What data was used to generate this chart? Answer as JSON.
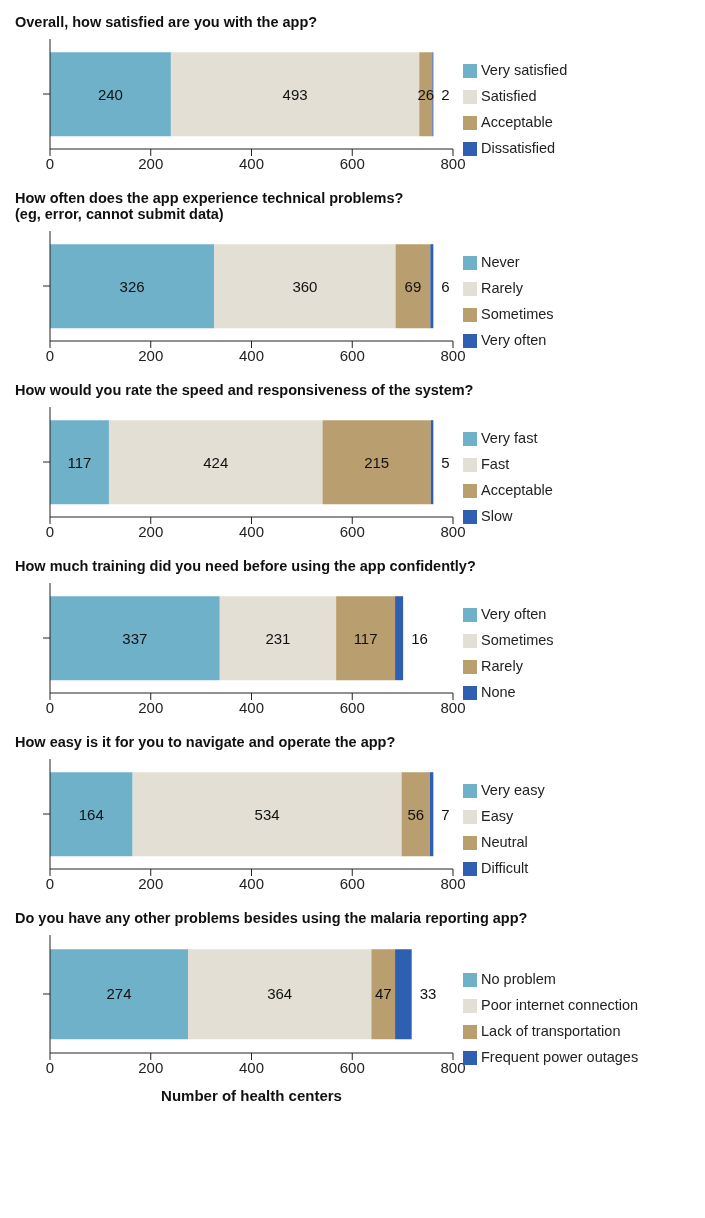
{
  "chart_data": [
    {
      "type": "bar",
      "orientation": "horizontal",
      "stacked": true,
      "title": "Overall, how satisfied are you with the app?",
      "categories": [
        null
      ],
      "series": [
        {
          "name": "Very satisfied",
          "color": "#6fb1c8",
          "values": [
            240
          ]
        },
        {
          "name": "Satisfied",
          "color": "#e3dfd4",
          "values": [
            493
          ]
        },
        {
          "name": "Acceptable",
          "color": "#b99e6f",
          "values": [
            26
          ]
        },
        {
          "name": "Dissatisfied",
          "color": "#2e5fb0",
          "values": [
            2
          ]
        }
      ],
      "xlim": [
        0,
        800
      ],
      "xticks": [
        0,
        200,
        400,
        600,
        800
      ],
      "data_labels": true,
      "legend": "right",
      "tick_labels": "x",
      "grid": false
    },
    {
      "type": "bar",
      "orientation": "horizontal",
      "stacked": true,
      "title": "How often does the app experience technical problems?\n(eg, error, cannot submit data)",
      "categories": [
        null
      ],
      "series": [
        {
          "name": "Never",
          "color": "#6fb1c8",
          "values": [
            326
          ]
        },
        {
          "name": "Rarely",
          "color": "#e3dfd4",
          "values": [
            360
          ]
        },
        {
          "name": "Sometimes",
          "color": "#b99e6f",
          "values": [
            69
          ]
        },
        {
          "name": "Very often",
          "color": "#2e5fb0",
          "values": [
            6
          ]
        }
      ],
      "xlim": [
        0,
        800
      ],
      "xticks": [
        0,
        200,
        400,
        600,
        800
      ],
      "data_labels": true,
      "legend": "right",
      "tick_labels": "x",
      "grid": false
    },
    {
      "type": "bar",
      "orientation": "horizontal",
      "stacked": true,
      "title": "How would you rate the speed and responsiveness of the system?",
      "categories": [
        null
      ],
      "series": [
        {
          "name": "Very fast",
          "color": "#6fb1c8",
          "values": [
            117
          ]
        },
        {
          "name": "Fast",
          "color": "#e3dfd4",
          "values": [
            424
          ]
        },
        {
          "name": "Acceptable",
          "color": "#b99e6f",
          "values": [
            215
          ]
        },
        {
          "name": "Slow",
          "color": "#2e5fb0",
          "values": [
            5
          ]
        }
      ],
      "xlim": [
        0,
        800
      ],
      "xticks": [
        0,
        200,
        400,
        600,
        800
      ],
      "data_labels": true,
      "legend": "right",
      "tick_labels": "x",
      "grid": false
    },
    {
      "type": "bar",
      "orientation": "horizontal",
      "stacked": true,
      "title": "How much training did you need before using the app confidently?",
      "categories": [
        null
      ],
      "series": [
        {
          "name": "Very often",
          "color": "#6fb1c8",
          "values": [
            337
          ]
        },
        {
          "name": "Sometimes",
          "color": "#e3dfd4",
          "values": [
            231
          ]
        },
        {
          "name": "Rarely",
          "color": "#b99e6f",
          "values": [
            117
          ]
        },
        {
          "name": "None",
          "color": "#2e5fb0",
          "values": [
            16
          ]
        }
      ],
      "xlim": [
        0,
        800
      ],
      "xticks": [
        0,
        200,
        400,
        600,
        800
      ],
      "data_labels": true,
      "legend": "right",
      "tick_labels": "x",
      "grid": false
    },
    {
      "type": "bar",
      "orientation": "horizontal",
      "stacked": true,
      "title": "How easy is it for you to navigate and operate the app?",
      "categories": [
        null
      ],
      "series": [
        {
          "name": "Very easy",
          "color": "#6fb1c8",
          "values": [
            164
          ]
        },
        {
          "name": "Easy",
          "color": "#e3dfd4",
          "values": [
            534
          ]
        },
        {
          "name": "Neutral",
          "color": "#b99e6f",
          "values": [
            56
          ]
        },
        {
          "name": "Difficult",
          "color": "#2e5fb0",
          "values": [
            7
          ]
        }
      ],
      "xlim": [
        0,
        800
      ],
      "xticks": [
        0,
        200,
        400,
        600,
        800
      ],
      "data_labels": true,
      "legend": "right",
      "tick_labels": "x",
      "grid": false
    },
    {
      "type": "bar",
      "orientation": "horizontal",
      "stacked": true,
      "title": "Do you have any other problems besides using the malaria reporting app?",
      "xlabel": "Number of health centers",
      "categories": [
        null
      ],
      "series": [
        {
          "name": "No problem",
          "color": "#6fb1c8",
          "values": [
            274
          ]
        },
        {
          "name": "Poor internet connection",
          "color": "#e3dfd4",
          "values": [
            364
          ]
        },
        {
          "name": "Lack of transportation",
          "color": "#b99e6f",
          "values": [
            47
          ]
        },
        {
          "name": "Frequent power outages",
          "color": "#2e5fb0",
          "values": [
            33
          ]
        }
      ],
      "xlim": [
        0,
        800
      ],
      "xticks": [
        0,
        200,
        400,
        600,
        800
      ],
      "data_labels": true,
      "legend": "right",
      "tick_labels": "x",
      "grid": false
    }
  ]
}
